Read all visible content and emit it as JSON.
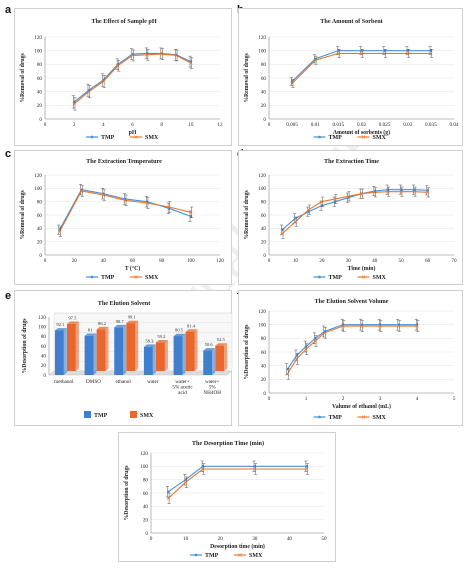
{
  "watermark": "Journal Pre-proof",
  "colors": {
    "tmp": "#4a90d9",
    "smx": "#e8762d",
    "tmp_bar": "#3f7fce",
    "smx_bar": "#e9672c"
  },
  "chart_data": [
    {
      "id": "a",
      "letter": "a",
      "type": "line",
      "title": "The Effect of Sample pH",
      "xlabel": "pH",
      "ylabel": "%Removal of drugs",
      "xlim": [
        0,
        12
      ],
      "xticks": [
        0,
        2,
        4,
        6,
        8,
        10,
        12
      ],
      "ylim": [
        0,
        120
      ],
      "yticks": [
        0,
        20,
        40,
        60,
        80,
        100,
        120
      ],
      "x": [
        2,
        3,
        4,
        5,
        6,
        7,
        8,
        9,
        10
      ],
      "series": [
        {
          "name": "TMP",
          "values": [
            25,
            42,
            57,
            80,
            95,
            96,
            96,
            94,
            84
          ],
          "err": [
            9,
            9,
            9,
            8,
            8,
            8,
            8,
            8,
            8
          ]
        },
        {
          "name": "SMX",
          "values": [
            22,
            40,
            55,
            78,
            93,
            94,
            95,
            93,
            82
          ],
          "err": [
            9,
            9,
            9,
            8,
            8,
            8,
            8,
            8,
            8
          ]
        }
      ]
    },
    {
      "id": "b",
      "letter": "b",
      "type": "line",
      "title": "The Amount of Sorbent",
      "xlabel": "Amount of sorbents (g)",
      "ylabel": "%Removal of drugs",
      "xlim": [
        0,
        0.04
      ],
      "xticks": [
        0,
        0.005,
        0.01,
        0.015,
        0.02,
        0.025,
        0.03,
        0.035,
        0.04
      ],
      "xticklabels": [
        "0",
        "0.005",
        "0.01",
        "0.015",
        "0.02",
        "0.025",
        "0.03",
        "0.035",
        "0.04"
      ],
      "ylim": [
        0,
        120
      ],
      "yticks": [
        0,
        20,
        40,
        60,
        80,
        100,
        120
      ],
      "x": [
        0.005,
        0.01,
        0.015,
        0.02,
        0.025,
        0.03,
        0.035
      ],
      "series": [
        {
          "name": "TMP",
          "values": [
            55,
            88,
            100,
            100,
            100,
            100,
            100
          ],
          "err": [
            6,
            6,
            6,
            6,
            6,
            6,
            6
          ]
        },
        {
          "name": "SMX",
          "values": [
            52,
            86,
            96,
            96,
            96,
            96,
            96
          ],
          "err": [
            6,
            6,
            6,
            6,
            6,
            6,
            6
          ]
        }
      ]
    },
    {
      "id": "c",
      "letter": "c",
      "type": "line",
      "title": "The Extraction Temperature",
      "xlabel": "T (°C)",
      "ylabel": "%Removal of drugs",
      "xlim": [
        0,
        120
      ],
      "xticks": [
        0,
        20,
        40,
        60,
        80,
        100,
        120
      ],
      "ylim": [
        0,
        120
      ],
      "yticks": [
        0,
        20,
        40,
        60,
        80,
        100,
        120
      ],
      "x": [
        10,
        25,
        40,
        55,
        70,
        85,
        100
      ],
      "series": [
        {
          "name": "TMP",
          "values": [
            38,
            98,
            92,
            84,
            80,
            70,
            58
          ],
          "err": [
            7,
            8,
            8,
            8,
            8,
            8,
            8
          ]
        },
        {
          "name": "SMX",
          "values": [
            35,
            96,
            90,
            82,
            78,
            72,
            64
          ],
          "err": [
            7,
            8,
            8,
            8,
            8,
            8,
            8
          ]
        }
      ]
    },
    {
      "id": "d",
      "letter": "d",
      "type": "line",
      "title": "The Extraction Time",
      "xlabel": "Time (min)",
      "ylabel": "%Removal of drugs",
      "xlim": [
        0,
        70
      ],
      "xticks": [
        0,
        10,
        20,
        30,
        40,
        50,
        60,
        70
      ],
      "ylim": [
        0,
        120
      ],
      "yticks": [
        0,
        20,
        40,
        60,
        80,
        100,
        120
      ],
      "x": [
        5,
        10,
        15,
        20,
        25,
        30,
        35,
        40,
        45,
        50,
        55,
        60
      ],
      "series": [
        {
          "name": "TMP",
          "values": [
            38,
            55,
            65,
            74,
            80,
            86,
            92,
            96,
            98,
            98,
            98,
            97
          ],
          "err": [
            7,
            7,
            7,
            7,
            7,
            7,
            7,
            7,
            7,
            7,
            7,
            7
          ]
        },
        {
          "name": "SMX",
          "values": [
            32,
            50,
            68,
            80,
            84,
            88,
            92,
            94,
            95,
            95,
            95,
            94
          ],
          "err": [
            7,
            7,
            7,
            7,
            7,
            7,
            7,
            7,
            7,
            7,
            7,
            7
          ]
        }
      ]
    },
    {
      "id": "e",
      "letter": "e",
      "type": "bar",
      "title": "The Elution Solvent",
      "ylabel": "%Desorption of drugs",
      "ylim": [
        0,
        120
      ],
      "yticks": [
        0,
        20,
        40,
        60,
        80,
        100,
        120
      ],
      "categories": [
        "methanol",
        "DMSO",
        "ethanol",
        "water",
        "water+ 5% acetic acid",
        "water+ 5% NH4OH"
      ],
      "series": [
        {
          "name": "TMP",
          "values": [
            92.1,
            81,
            98.7,
            58.3,
            80.5,
            50.6
          ]
        },
        {
          "name": "SMX",
          "values": [
            97.5,
            86.2,
            99.1,
            59.2,
            81.4,
            52.5
          ]
        }
      ],
      "value_labels": {
        "TMP": [
          "92.1",
          "81",
          "98.7",
          "58.3",
          "80.5",
          "50.6"
        ],
        "SMX": [
          "97.5",
          "86.2",
          "99.1",
          "59.2",
          "81.4",
          "52.5"
        ]
      }
    },
    {
      "id": "f",
      "letter": "f",
      "type": "line",
      "title": "The Elution Solvent Volume",
      "xlabel": "Valume of ethanol (mL)",
      "ylabel": "%Desorption of drugs",
      "xlim": [
        0,
        5
      ],
      "xticks": [
        0,
        1,
        2,
        3,
        4,
        5
      ],
      "ylim": [
        0,
        120
      ],
      "yticks": [
        0,
        20,
        40,
        60,
        80,
        100,
        120
      ],
      "x": [
        0.5,
        0.75,
        1,
        1.25,
        1.5,
        2,
        2.5,
        3,
        3.5,
        4
      ],
      "series": [
        {
          "name": "TMP",
          "values": [
            35,
            55,
            68,
            80,
            90,
            100,
            100,
            100,
            100,
            100
          ],
          "err": [
            8,
            8,
            8,
            8,
            8,
            8,
            8,
            8,
            8,
            8
          ]
        },
        {
          "name": "SMX",
          "values": [
            28,
            50,
            64,
            76,
            88,
            98,
            98,
            98,
            98,
            98
          ],
          "err": [
            8,
            8,
            8,
            8,
            8,
            8,
            8,
            8,
            8,
            8
          ]
        }
      ]
    },
    {
      "id": "g",
      "letter": "g",
      "type": "line",
      "title": "The Desorption Time (min)",
      "xlabel": "Desorption time (min)",
      "ylabel": "%Desorption of drugs",
      "xlim": [
        0,
        50
      ],
      "xticks": [
        0,
        10,
        20,
        30,
        40,
        50
      ],
      "ylim": [
        0,
        120
      ],
      "yticks": [
        0,
        20,
        40,
        60,
        80,
        100,
        120
      ],
      "x": [
        5,
        10,
        15,
        30,
        45
      ],
      "series": [
        {
          "name": "TMP",
          "values": [
            62,
            80,
            100,
            100,
            100
          ],
          "err": [
            8,
            8,
            8,
            8,
            8
          ]
        },
        {
          "name": "SMX",
          "values": [
            52,
            76,
            96,
            96,
            96
          ],
          "err": [
            8,
            8,
            8,
            8,
            8
          ]
        }
      ]
    }
  ]
}
